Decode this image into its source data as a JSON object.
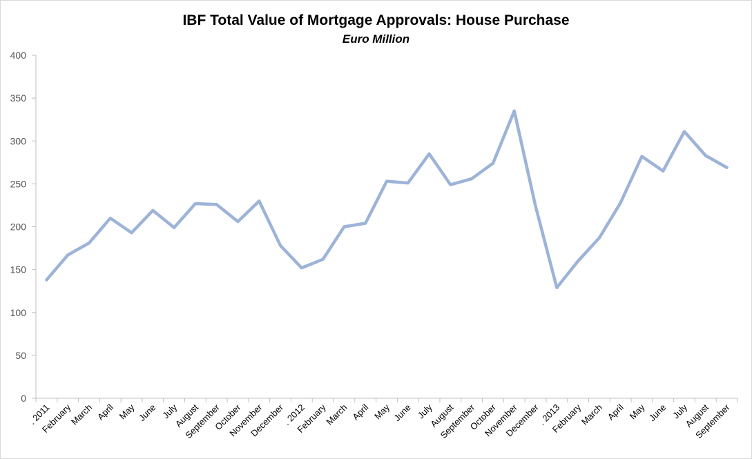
{
  "chart_data": {
    "type": "line",
    "title": "IBF Total Value of Mortgage Approvals: House Purchase",
    "subtitle": "Euro Million",
    "xlabel": "",
    "ylabel": "",
    "ylim": [
      0,
      400
    ],
    "yticks": [
      0,
      50,
      100,
      150,
      200,
      250,
      300,
      350,
      400
    ],
    "grid": false,
    "legend": "none",
    "line_color": "#9db3d8",
    "categories": [
      ". 2011",
      "February",
      "March",
      "April",
      "May",
      "June",
      "July",
      "August",
      "September",
      "October",
      "November",
      "December",
      ". 2012",
      "February",
      "March",
      "April",
      "May",
      "June",
      "July",
      "August",
      "September",
      "October",
      "November",
      "December",
      ". 2013",
      "February",
      "March",
      "April",
      "May",
      "June",
      "July",
      "August",
      "September"
    ],
    "series": [
      {
        "values": [
          138,
          167,
          181,
          210,
          193,
          219,
          199,
          227,
          226,
          206,
          230,
          178,
          152,
          162,
          200,
          204,
          253,
          251,
          285,
          249,
          256,
          274,
          335,
          224,
          129,
          160,
          187,
          228,
          282,
          265,
          311,
          283,
          269
        ]
      }
    ]
  }
}
